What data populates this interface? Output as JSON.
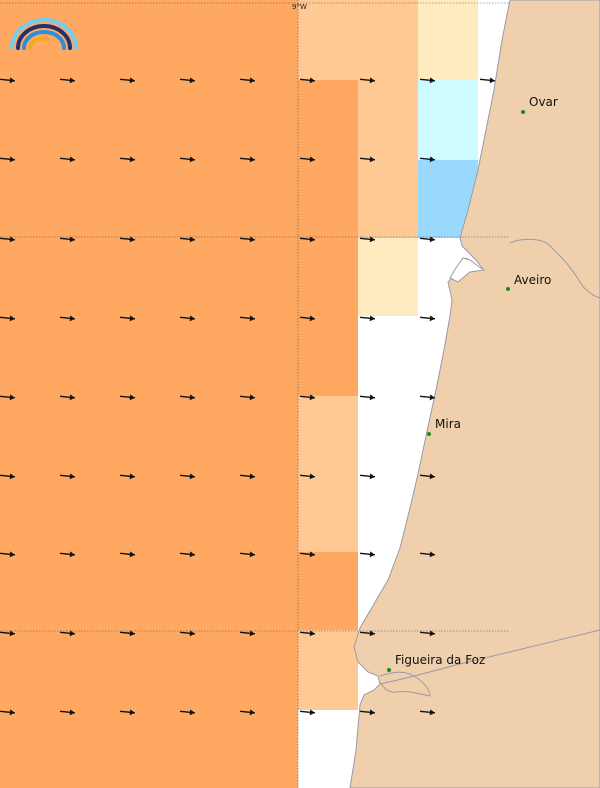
{
  "colors": {
    "water": "#ffffff",
    "land": "#efcfac",
    "coast": "#9a9aa8",
    "grid": "#555555",
    "arrow": "#111111",
    "city_dot": "#1a8a1a",
    "cell_deep_orange": "#ffa862",
    "cell_light_orange": "#ffc994",
    "cell_pale_yellow": "#ffebc0",
    "cell_pale_cyan": "#cdfbff",
    "cell_light_blue": "#9ad9fd",
    "logo_navy": "#25316a",
    "logo_blue": "#2d8fd9",
    "logo_sky": "#76ccef",
    "logo_orange": "#f5a623"
  },
  "logo": {
    "name": "rainbow-logo"
  },
  "grid": {
    "meridian_label": "9°W"
  },
  "cities": [
    {
      "name": "Ovar"
    },
    {
      "name": "Aveiro"
    },
    {
      "name": "Mira"
    },
    {
      "name": "Figueira da Foz"
    }
  ],
  "overlay": {
    "legend": "none",
    "arrow_direction": "eastward (slightly south of east)"
  }
}
